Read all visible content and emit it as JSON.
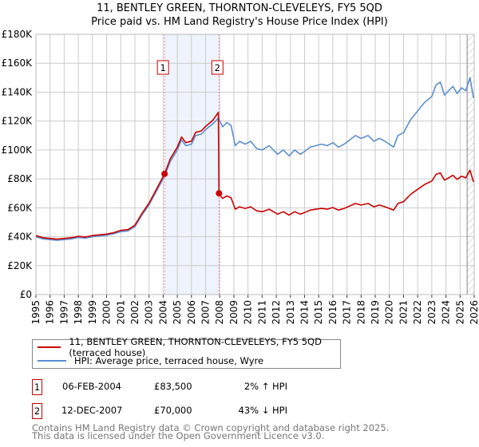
{
  "title_line1": "11, BENTLEY GREEN, THORNTON-CLEVELEYS, FY5 5QD",
  "title_line2": "Price paid vs. HM Land Registry's House Price Index (HPI)",
  "chart_data": {
    "type": "line",
    "title": "11, BENTLEY GREEN, THORNTON-CLEVELEYS, FY5 5QD — Price paid vs. HM Land Registry's House Price Index (HPI)",
    "xlim": [
      1995,
      2026
    ],
    "ylim": [
      0,
      180000
    ],
    "x_ticks": [
      "1995",
      "1996",
      "1997",
      "1998",
      "1999",
      "2000",
      "2001",
      "2002",
      "2003",
      "2004",
      "2005",
      "2006",
      "2007",
      "2008",
      "2009",
      "2010",
      "2011",
      "2012",
      "2013",
      "2014",
      "2015",
      "2016",
      "2017",
      "2018",
      "2019",
      "2020",
      "2021",
      "2022",
      "2023",
      "2024",
      "2025",
      "2026"
    ],
    "y_ticks": [
      {
        "v": 0,
        "label": "£0"
      },
      {
        "v": 20000,
        "label": "£20K"
      },
      {
        "v": 40000,
        "label": "£40K"
      },
      {
        "v": 60000,
        "label": "£60K"
      },
      {
        "v": 80000,
        "label": "£80K"
      },
      {
        "v": 100000,
        "label": "£100K"
      },
      {
        "v": 120000,
        "label": "£120K"
      },
      {
        "v": 140000,
        "label": "£140K"
      },
      {
        "v": 160000,
        "label": "£160K"
      },
      {
        "v": 180000,
        "label": "£180K"
      }
    ],
    "grid": true,
    "shaded_period": [
      2004.1,
      2007.95
    ],
    "forecast_hatch_from": 2025.5,
    "series": [
      {
        "name": "11, BENTLEY GREEN, THORNTON-CLEVELEYS, FY5 5QD (terraced house)",
        "color": "#cc0000",
        "x": [
          1995,
          1995.5,
          1996,
          1996.5,
          1997,
          1997.5,
          1998,
          1998.5,
          1999,
          1999.5,
          2000,
          2000.5,
          2001,
          2001.5,
          2002,
          2002.5,
          2003,
          2003.5,
          2004.1,
          2004.5,
          2005,
          2005.3,
          2005.6,
          2006,
          2006.3,
          2006.7,
          2007,
          2007.5,
          2007.9,
          2007.95,
          2008.2,
          2008.5,
          2008.8,
          2009.1,
          2009.4,
          2009.8,
          2010.2,
          2010.6,
          2011,
          2011.5,
          2011.8,
          2012.1,
          2012.5,
          2012.9,
          2013.3,
          2013.7,
          2014,
          2014.4,
          2014.8,
          2015.2,
          2015.6,
          2016,
          2016.4,
          2016.8,
          2017.2,
          2017.6,
          2018,
          2018.5,
          2018.9,
          2019.3,
          2019.7,
          2020,
          2020.3,
          2020.6,
          2021,
          2021.5,
          2022,
          2022.5,
          2023,
          2023.3,
          2023.6,
          2023.9,
          2024.2,
          2024.5,
          2024.8,
          2025.1,
          2025.4,
          2025.7,
          2025.95
        ],
        "y": [
          40800,
          39300,
          38800,
          38300,
          38800,
          39300,
          40300,
          39800,
          40800,
          41300,
          41800,
          42800,
          44400,
          44900,
          47900,
          56100,
          63200,
          72400,
          83500,
          93800,
          102000,
          109000,
          105100,
          106100,
          112200,
          113200,
          116300,
          120400,
          126000,
          70000,
          66500,
          68200,
          67000,
          59000,
          60700,
          59600,
          60700,
          57900,
          57300,
          59000,
          57300,
          55600,
          57300,
          55000,
          57300,
          55600,
          56700,
          58400,
          59000,
          59600,
          59000,
          60200,
          58400,
          59600,
          61300,
          63000,
          61900,
          63000,
          60700,
          61900,
          60700,
          59600,
          58400,
          63000,
          64200,
          69300,
          72800,
          76200,
          78500,
          83100,
          84200,
          79100,
          80800,
          82500,
          79600,
          81900,
          80800,
          86000,
          77900
        ]
      },
      {
        "name": "HPI: Average price, terraced house, Wyre",
        "color": "#5b8fd0",
        "x": [
          1995,
          1995.5,
          1996,
          1996.5,
          1997,
          1997.5,
          1998,
          1998.5,
          1999,
          1999.5,
          2000,
          2000.5,
          2001,
          2001.5,
          2002,
          2002.5,
          2003,
          2003.5,
          2004.1,
          2004.5,
          2005,
          2005.3,
          2005.6,
          2006,
          2006.3,
          2006.7,
          2007,
          2007.5,
          2007.9,
          2008.2,
          2008.5,
          2008.8,
          2009.1,
          2009.4,
          2009.8,
          2010.2,
          2010.6,
          2011,
          2011.5,
          2011.8,
          2012.1,
          2012.5,
          2012.9,
          2013.3,
          2013.7,
          2014,
          2014.4,
          2014.8,
          2015.2,
          2015.6,
          2016,
          2016.4,
          2016.8,
          2017.2,
          2017.6,
          2018,
          2018.5,
          2018.9,
          2019.3,
          2019.7,
          2020,
          2020.3,
          2020.6,
          2021,
          2021.5,
          2022,
          2022.5,
          2023,
          2023.3,
          2023.6,
          2023.9,
          2024.2,
          2024.5,
          2024.8,
          2025.1,
          2025.4,
          2025.7,
          2025.95
        ],
        "y": [
          40000,
          38500,
          38000,
          37500,
          38000,
          38500,
          39500,
          39000,
          40000,
          40500,
          41000,
          42000,
          43500,
          44000,
          47000,
          55000,
          62000,
          71000,
          82000,
          92000,
          100000,
          107000,
          103000,
          104000,
          110000,
          111000,
          114000,
          118000,
          122000,
          116000,
          119000,
          117000,
          103000,
          106000,
          104000,
          106000,
          101000,
          100000,
          103000,
          100000,
          97000,
          100000,
          96000,
          100000,
          97000,
          99000,
          102000,
          103000,
          104000,
          103000,
          105000,
          102000,
          104000,
          107000,
          110000,
          108000,
          110000,
          106000,
          108000,
          106000,
          104000,
          102000,
          110000,
          112000,
          121000,
          127000,
          133000,
          137000,
          145000,
          147000,
          138000,
          141000,
          144000,
          139000,
          143000,
          141000,
          150000,
          136000
        ]
      }
    ],
    "annotations": [
      {
        "label": "1",
        "x": 2004.1,
        "y": 83500
      },
      {
        "label": "2",
        "x": 2007.95,
        "y": 70000
      }
    ]
  },
  "legend": {
    "red_label": "11, BENTLEY GREEN, THORNTON-CLEVELEYS, FY5 5QD (terraced house)",
    "blue_label": "HPI: Average price, terraced house, Wyre"
  },
  "sales": [
    {
      "num": "1",
      "date": "06-FEB-2004",
      "price": "£83,500",
      "hpi": "2% ↑ HPI"
    },
    {
      "num": "2",
      "date": "12-DEC-2007",
      "price": "£70,000",
      "hpi": "43% ↓ HPI"
    }
  ],
  "footer_line1": "Contains HM Land Registry data © Crown copyright and database right 2025.",
  "footer_line2": "This data is licensed under the Open Government Licence v3.0."
}
